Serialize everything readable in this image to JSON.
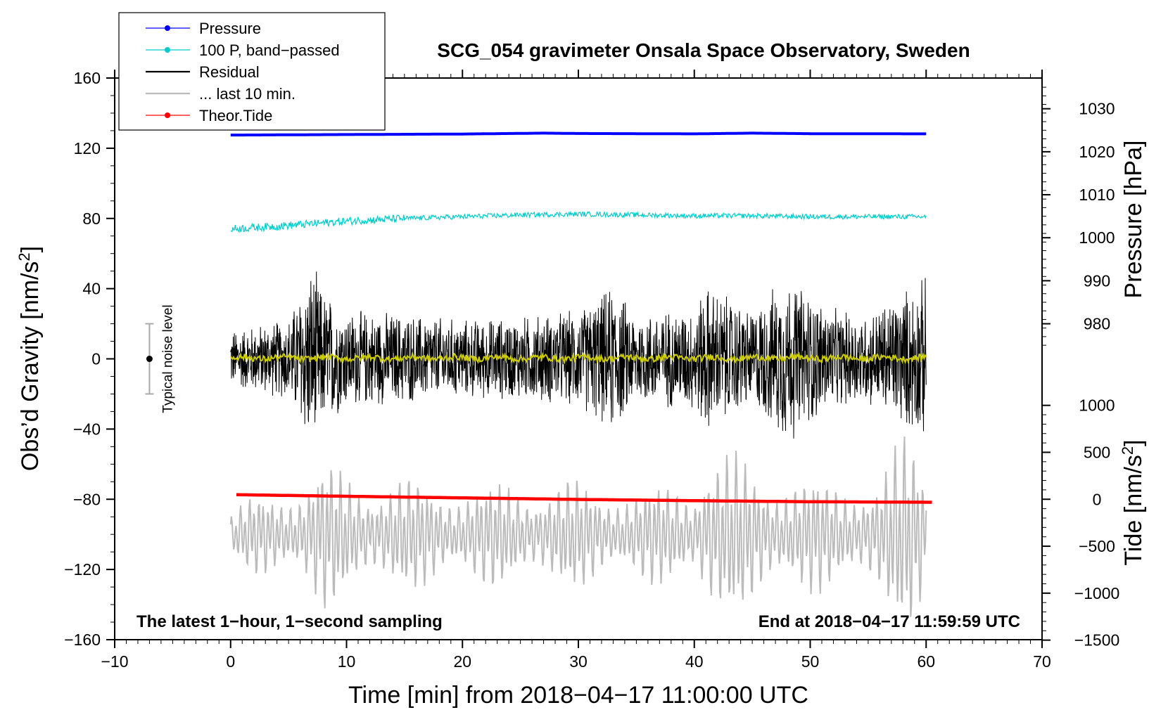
{
  "chart_data": {
    "type": "line",
    "title": "SCG_054 gravimeter Onsala Space Observatory, Sweden",
    "xlabel": "Time [min] from 2018−04−17 11:00:00 UTC",
    "ylabel": "Obs’d Gravity [nm/s",
    "ylabel_sup": "2",
    "ylabel_close": "]",
    "xlim": [
      -10,
      70
    ],
    "ylim": [
      -160,
      160
    ],
    "xticks": [
      -10,
      0,
      10,
      20,
      30,
      40,
      50,
      60,
      70
    ],
    "xtick_labels": [
      "−10",
      "0",
      "10",
      "20",
      "30",
      "40",
      "50",
      "60",
      "70"
    ],
    "yticks": [
      -160,
      -120,
      -80,
      -40,
      0,
      40,
      80,
      120,
      160
    ],
    "ytick_labels": [
      "−160",
      "−120",
      "−80",
      "−40",
      "0",
      "40",
      "80",
      "120",
      "160"
    ],
    "pressure_axis": {
      "label": "Pressure [hPa]",
      "ticks": [
        980,
        990,
        1000,
        1010,
        1020,
        1030
      ],
      "tick_labels": [
        "980",
        "990",
        "1000",
        "1010",
        "1020",
        "1030"
      ],
      "map_gravity_at_980": 20,
      "gravity_per_hpa": 2.45
    },
    "tide_axis": {
      "label": "Tide [nm/s",
      "label_sup": "2",
      "label_close": "]",
      "ticks": [
        -1500,
        -1000,
        -500,
        0,
        500,
        1000
      ],
      "tick_labels": [
        "−1500",
        "−1000",
        "−500",
        "0",
        "500",
        "1000"
      ],
      "map_gravity_at_0": -80,
      "gravity_per_unit": 0.0535
    },
    "legend": {
      "placement": "top-left",
      "entries": [
        {
          "label": "Pressure",
          "color": "#0000ff",
          "style": "line-dot"
        },
        {
          "label": "100 P, band−passed",
          "color": "#00cccc",
          "style": "line-dot"
        },
        {
          "label": "Residual",
          "color": "#000000",
          "style": "line"
        },
        {
          "label": "... last 10 min.",
          "color": "#bbbbbb",
          "style": "line"
        },
        {
          "label": "Theor.Tide",
          "color": "#ff0000",
          "style": "line-dot"
        }
      ]
    },
    "series": [
      {
        "name": "Pressure",
        "color": "#0000ff",
        "x": [
          0,
          10,
          20,
          27,
          30,
          40,
          45,
          50,
          60
        ],
        "y": [
          127.5,
          127.8,
          128.1,
          128.6,
          128.4,
          128.2,
          128.6,
          128.3,
          128.2
        ]
      },
      {
        "name": "100 P, band−passed",
        "color": "#00cccc",
        "x": [
          0,
          5,
          10,
          15,
          20,
          25,
          30,
          35,
          40,
          45,
          50,
          55,
          60
        ],
        "y": [
          74,
          76,
          78.5,
          80,
          81,
          82,
          82.5,
          82,
          81.5,
          81.5,
          81,
          81,
          81
        ],
        "noise_amp": 1.4
      },
      {
        "name": "Residual",
        "color": "#000000",
        "x_range": [
          0,
          60
        ],
        "y_center": 0,
        "envelope_min": [
          0,
          5,
          6.5,
          7,
          8,
          10,
          15,
          20,
          25,
          30,
          33,
          35,
          40,
          41,
          45,
          48,
          52,
          55,
          58,
          60
        ],
        "envelope_amp": [
          18,
          25,
          50,
          58,
          42,
          30,
          28,
          24,
          26,
          30,
          45,
          28,
          32,
          46,
          30,
          52,
          30,
          28,
          42,
          50
        ]
      },
      {
        "name": "Residual (smoothed)",
        "color": "#cccc00",
        "x_range": [
          0,
          60
        ],
        "y_center": 0.5,
        "noise_amp": 1.8
      },
      {
        "name": "... last 10 min.",
        "color": "#bbbbbb",
        "x_range": [
          0,
          60
        ],
        "y_center": -100,
        "envelope_min": [
          0,
          2,
          6,
          8,
          10,
          20,
          30,
          35,
          40,
          41,
          43,
          47,
          52,
          56,
          58.5,
          60
        ],
        "envelope_amp": [
          12,
          22,
          30,
          42,
          34,
          28,
          30,
          26,
          30,
          52,
          45,
          36,
          30,
          34,
          58,
          46
        ]
      },
      {
        "name": "Theor.Tide",
        "color": "#ff0000",
        "x": [
          0.5,
          10,
          20,
          30,
          40,
          50,
          60.5
        ],
        "y": [
          -77.4,
          -78.3,
          -79.2,
          -80.1,
          -80.8,
          -81.4,
          -81.7
        ]
      }
    ],
    "typical_noise": {
      "label": "Typical noise level",
      "x": -7,
      "y": 0,
      "low": -20,
      "high": 20
    },
    "annotations": {
      "bottom_left": "The latest 1−hour, 1−second sampling",
      "bottom_right": "End at 2018−04−17 11:59:59 UTC"
    }
  }
}
